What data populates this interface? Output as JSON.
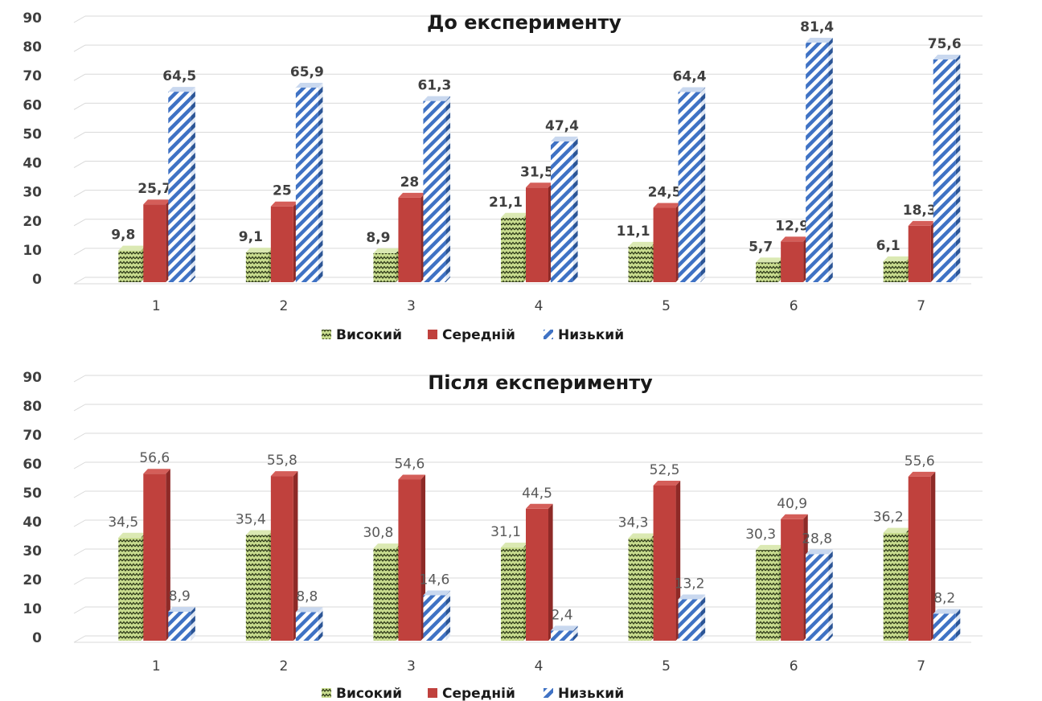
{
  "colors": {
    "high_fill": "#c9dd8f",
    "high_pattern": "#2e3a18",
    "mid_front": "#c0413d",
    "mid_side": "#8e2a27",
    "mid_top": "#d45e59",
    "low_stripe": "#3f72c4",
    "low_bg": "#ffffff",
    "grid": "#d9d9d9",
    "axis_text": "#404040"
  },
  "chart_data": [
    {
      "type": "bar",
      "title": "До експерименту",
      "categories": [
        "1",
        "2",
        "3",
        "4",
        "5",
        "6",
        "7"
      ],
      "ylim": [
        0,
        90
      ],
      "yticks": [
        0,
        10,
        20,
        30,
        40,
        50,
        60,
        70,
        80,
        90
      ],
      "grid": true,
      "legend_position": "bottom",
      "series": [
        {
          "name": "Високий",
          "values": [
            9.8,
            9.1,
            8.9,
            21.1,
            11.1,
            5.7,
            6.1
          ],
          "labels": [
            "9,8",
            "9,1",
            "8,9",
            "21,1",
            "11,1",
            "5,7",
            "6,1"
          ]
        },
        {
          "name": "Середній",
          "values": [
            25.7,
            25,
            28,
            31.5,
            24.5,
            12.9,
            18.3
          ],
          "labels": [
            "25,7",
            "25",
            "28",
            "31,5",
            "24,5",
            "12,9",
            "18,3"
          ]
        },
        {
          "name": "Низький",
          "values": [
            64.5,
            65.9,
            61.3,
            47.4,
            64.4,
            81.4,
            75.6
          ],
          "labels": [
            "64,5",
            "65,9",
            "61,3",
            "47,4",
            "64,4",
            "81,4",
            "75,6"
          ]
        }
      ]
    },
    {
      "type": "bar",
      "title": "Після експерименту",
      "categories": [
        "1",
        "2",
        "3",
        "4",
        "5",
        "6",
        "7"
      ],
      "ylim": [
        0,
        90
      ],
      "yticks": [
        0,
        10,
        20,
        30,
        40,
        50,
        60,
        70,
        80,
        90
      ],
      "grid": true,
      "legend_position": "bottom",
      "series": [
        {
          "name": "Високий",
          "values": [
            34.5,
            35.4,
            30.8,
            31.1,
            34.3,
            30.3,
            36.2
          ],
          "labels": [
            "34,5",
            "35,4",
            "30,8",
            "31,1",
            "34,3",
            "30,3",
            "36,2"
          ]
        },
        {
          "name": "Середній",
          "values": [
            56.6,
            55.8,
            54.6,
            44.5,
            52.5,
            40.9,
            55.6
          ],
          "labels": [
            "56,6",
            "55,8",
            "54,6",
            "44,5",
            "52,5",
            "40,9",
            "55,6"
          ]
        },
        {
          "name": "Низький",
          "values": [
            8.9,
            8.8,
            14.6,
            2.4,
            13.2,
            28.8,
            8.2
          ],
          "labels": [
            "8,9",
            "8,8",
            "14,6",
            "2,4",
            "13,2",
            "28,8",
            "8,2"
          ]
        }
      ]
    }
  ]
}
